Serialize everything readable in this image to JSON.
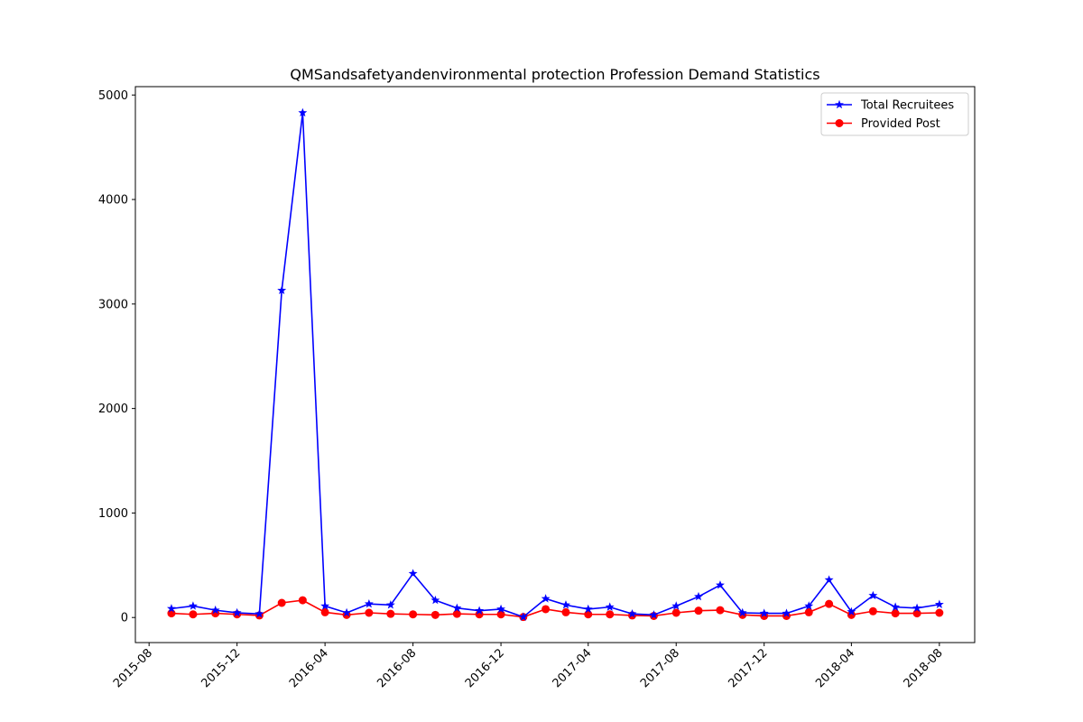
{
  "chart_data": {
    "type": "line",
    "title": "QMSandsafetyandenvironmental protection Profession Demand Statistics",
    "xlabel": "",
    "ylabel": "",
    "x": [
      "2015-09",
      "2015-10",
      "2015-11",
      "2015-12",
      "2016-01",
      "2016-02",
      "2016-03",
      "2016-04",
      "2016-05",
      "2016-06",
      "2016-07",
      "2016-08",
      "2016-09",
      "2016-10",
      "2016-11",
      "2016-12",
      "2017-01",
      "2017-02",
      "2017-03",
      "2017-04",
      "2017-05",
      "2017-06",
      "2017-07",
      "2017-08",
      "2017-09",
      "2017-10",
      "2017-11",
      "2017-12",
      "2018-01",
      "2018-02",
      "2018-03",
      "2018-04",
      "2018-05",
      "2018-06",
      "2018-07",
      "2018-08"
    ],
    "x_tick_labels": [
      "2015-08",
      "2015-12",
      "2016-04",
      "2016-08",
      "2016-12",
      "2017-04",
      "2017-08",
      "2017-12",
      "2018-04",
      "2018-08"
    ],
    "y_tick_labels": [
      "0",
      "1000",
      "2000",
      "3000",
      "4000",
      "5000"
    ],
    "ylim": [
      -240,
      5080
    ],
    "xlim": [
      "2015-07-13",
      "2018-09-19"
    ],
    "grid": false,
    "legend_position": "top-right",
    "series": [
      {
        "name": "Total Recruitees",
        "color": "#0000ff",
        "marker": "star",
        "values": [
          85,
          110,
          70,
          45,
          35,
          3130,
          4830,
          110,
          45,
          130,
          120,
          420,
          165,
          90,
          65,
          80,
          5,
          180,
          120,
          80,
          100,
          35,
          25,
          110,
          200,
          310,
          45,
          40,
          40,
          110,
          360,
          55,
          210,
          100,
          90,
          125
        ]
      },
      {
        "name": "Provided Post",
        "color": "#ff0000",
        "marker": "circle",
        "values": [
          40,
          30,
          40,
          30,
          20,
          140,
          165,
          50,
          25,
          45,
          35,
          30,
          25,
          35,
          30,
          30,
          5,
          80,
          50,
          30,
          30,
          20,
          15,
          45,
          65,
          70,
          25,
          15,
          15,
          50,
          130,
          25,
          60,
          40,
          40,
          45
        ]
      }
    ]
  }
}
